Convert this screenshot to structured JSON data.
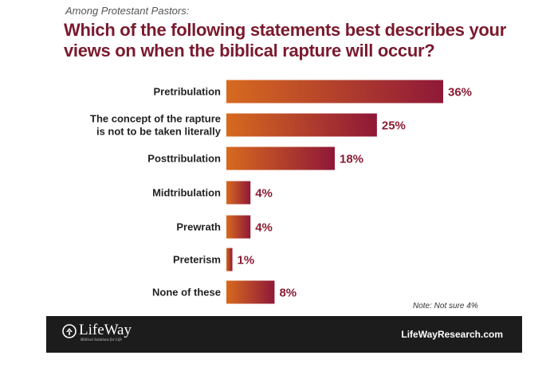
{
  "header": {
    "subtitle": "Among Protestant Pastors:",
    "title": "Which of the following statements best describes your views on when the biblical rapture will occur?"
  },
  "chart_data": {
    "type": "bar",
    "orientation": "horizontal",
    "title": "Which of the following statements best describes your views on when the biblical rapture will occur?",
    "subtitle": "Among Protestant Pastors:",
    "categories": [
      [
        "Pretribulation"
      ],
      [
        "The concept of the rapture",
        "is not to be taken literally"
      ],
      [
        "Posttribulation"
      ],
      [
        "Midtribulation"
      ],
      [
        "Prewrath"
      ],
      [
        "Preterism"
      ],
      [
        "None of these"
      ]
    ],
    "values": [
      36,
      25,
      18,
      4,
      4,
      1,
      8
    ],
    "value_labels": [
      "36%",
      "25%",
      "18%",
      "4%",
      "4%",
      "1%",
      "8%"
    ],
    "xlim": [
      0,
      36
    ],
    "grid": false,
    "colors": {
      "bar_start": "#d76a1f",
      "bar_end": "#8f1838",
      "value_text": "#8a1c34"
    }
  },
  "note": "Note: Not sure 4%",
  "footer": {
    "logo_name": "LifeWay",
    "logo_tagline": "Biblical Solutions for Life",
    "website": "LifeWayResearch.com",
    "background": "#1c1c1c"
  }
}
